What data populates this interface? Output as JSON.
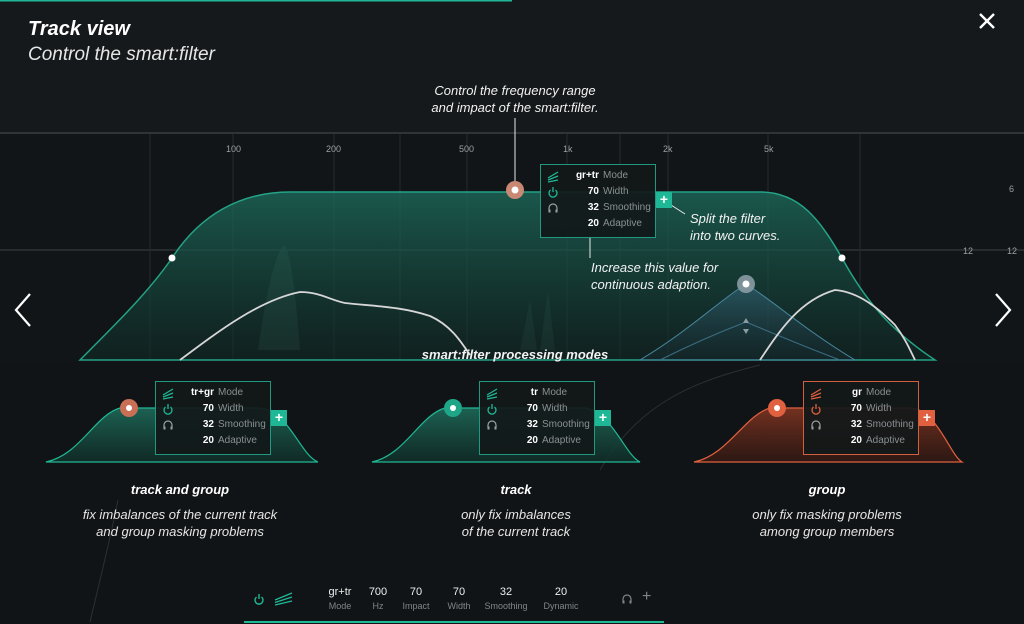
{
  "header": {
    "title": "Track view",
    "subtitle": "Control the smart:filter"
  },
  "frequency_axis": {
    "labels": [
      "100",
      "200",
      "500",
      "1k",
      "2k",
      "5k"
    ],
    "db_labels": [
      "6",
      "12",
      "12"
    ]
  },
  "annotations": {
    "frequency_range": [
      "Control the frequency range",
      "and impact of the smart:filter."
    ],
    "split_filter": [
      "Split the filter",
      "into two curves."
    ],
    "adaption": [
      "Increase this value for",
      "continuous adaption."
    ],
    "processing_modes": "smart:filter processing modes"
  },
  "main_panel": {
    "rows": [
      {
        "icon": "mode-icon",
        "value": "gr+tr",
        "label": "Mode"
      },
      {
        "icon": "power-icon",
        "value": "70",
        "label": "Width"
      },
      {
        "icon": "headphones-icon",
        "value": "32",
        "label": "Smoothing"
      },
      {
        "icon": "",
        "value": "20",
        "label": "Adaptive"
      }
    ],
    "plus": "+"
  },
  "modes": [
    {
      "name": "track and group",
      "desc": [
        "fix imbalances of the current track",
        "and group masking problems"
      ],
      "panel": [
        {
          "value": "tr+gr",
          "label": "Mode"
        },
        {
          "value": "70",
          "label": "Width"
        },
        {
          "value": "32",
          "label": "Smoothing"
        },
        {
          "value": "20",
          "label": "Adaptive"
        }
      ]
    },
    {
      "name": "track",
      "desc": [
        "only fix imbalances",
        "of the current track"
      ],
      "panel": [
        {
          "value": "tr",
          "label": "Mode"
        },
        {
          "value": "70",
          "label": "Width"
        },
        {
          "value": "32",
          "label": "Smoothing"
        },
        {
          "value": "20",
          "label": "Adaptive"
        }
      ]
    },
    {
      "name": "group",
      "desc": [
        "only fix masking problems",
        "among group members"
      ],
      "panel": [
        {
          "value": "gr",
          "label": "Mode"
        },
        {
          "value": "70",
          "label": "Width"
        },
        {
          "value": "32",
          "label": "Smoothing"
        },
        {
          "value": "20",
          "label": "Adaptive"
        }
      ]
    }
  ],
  "bottom_bar": {
    "stats": [
      {
        "value": "gr+tr",
        "label": "Mode"
      },
      {
        "value": "700",
        "label": "Hz"
      },
      {
        "value": "70",
        "label": "Impact"
      },
      {
        "value": "70",
        "label": "Width"
      },
      {
        "value": "32",
        "label": "Smoothing"
      },
      {
        "value": "20",
        "label": "Dynamic"
      }
    ],
    "plus": "+"
  },
  "colors": {
    "teal": "#1fb896",
    "orange": "#e0603f",
    "background": "#121517"
  }
}
